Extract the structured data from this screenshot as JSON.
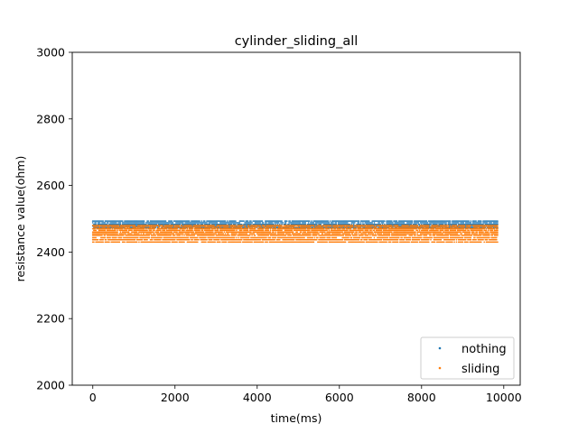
{
  "chart_data": {
    "type": "scatter",
    "title": "cylinder_sliding_all",
    "xlabel": "time(ms)",
    "ylabel": "resistance value(ohm)",
    "xlim": [
      -500,
      10400
    ],
    "ylim": [
      2000,
      3000
    ],
    "x_ticks": [
      0,
      2000,
      4000,
      6000,
      8000,
      10000
    ],
    "y_ticks": [
      2000,
      2200,
      2400,
      2600,
      2800,
      3000
    ],
    "x_tick_labels": [
      "0",
      "2000",
      "4000",
      "6000",
      "8000",
      "10000"
    ],
    "y_tick_labels": [
      "2000",
      "2200",
      "2400",
      "2600",
      "2800",
      "3000"
    ],
    "grid": false,
    "legend_position": "lower right",
    "series": [
      {
        "name": "nothing",
        "color": "#1f77b4",
        "x_range": [
          0,
          9850
        ],
        "y_levels": [
          2473,
          2478,
          2483,
          2488,
          2493
        ],
        "x_step": 25
      },
      {
        "name": "sliding",
        "color": "#ff7f0e",
        "x_range": [
          0,
          9850
        ],
        "y_levels": [
          2430,
          2437,
          2443,
          2450,
          2455,
          2460,
          2465,
          2470,
          2475,
          2480
        ],
        "x_step": 25
      }
    ]
  }
}
